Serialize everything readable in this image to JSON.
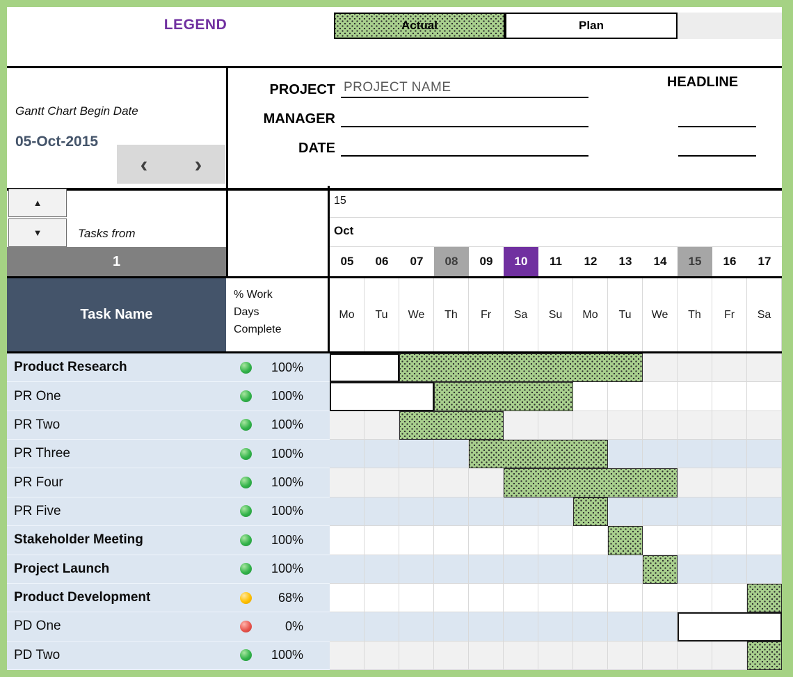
{
  "legend": {
    "title": "LEGEND",
    "actual_label": "Actual",
    "plan_label": "Plan"
  },
  "colors": {
    "page_border_green": "#a5d284",
    "legend_title_purple": "#7030a0",
    "actual_bar_green": "#a9d08e",
    "header_dark_slate": "#44546a",
    "task_column_blue": "#dce6f1",
    "today_purple": "#7030a0",
    "day_highlight_gray": "#a6a6a6",
    "row_start_bar_gray": "#808080",
    "status_green": "#33b34a",
    "status_yellow": "#ffc000",
    "status_red": "#e8564e"
  },
  "header": {
    "begin_date_label": "Gantt Chart Begin Date",
    "begin_date_value": "05-Oct-2015",
    "nav_prev": "‹",
    "nav_next": "›",
    "project_label": "PROJECT",
    "project_value": "PROJECT NAME",
    "manager_label": "MANAGER",
    "manager_value": "",
    "date_label": "DATE",
    "date_value": "",
    "headline_label": "HEADLINE"
  },
  "scroll": {
    "up_icon": "▲",
    "down_icon": "▼",
    "tasks_from_label": "Tasks from",
    "tasks_from_value": "1"
  },
  "columns": {
    "task_name_header": "Task Name",
    "pct_header_lines": [
      "% Work",
      "Days",
      "Complete"
    ]
  },
  "timeline": {
    "year_label": "15",
    "month_label": "Oct",
    "days": [
      {
        "num": "05",
        "dow": "Mo",
        "highlight": "none"
      },
      {
        "num": "06",
        "dow": "Tu",
        "highlight": "none"
      },
      {
        "num": "07",
        "dow": "We",
        "highlight": "none"
      },
      {
        "num": "08",
        "dow": "Th",
        "highlight": "gray"
      },
      {
        "num": "09",
        "dow": "Fr",
        "highlight": "none"
      },
      {
        "num": "10",
        "dow": "Sa",
        "highlight": "purple"
      },
      {
        "num": "11",
        "dow": "Su",
        "highlight": "none"
      },
      {
        "num": "12",
        "dow": "Mo",
        "highlight": "none"
      },
      {
        "num": "13",
        "dow": "Tu",
        "highlight": "none"
      },
      {
        "num": "14",
        "dow": "We",
        "highlight": "none"
      },
      {
        "num": "15",
        "dow": "Th",
        "highlight": "gray"
      },
      {
        "num": "16",
        "dow": "Fr",
        "highlight": "none"
      },
      {
        "num": "17",
        "dow": "Sa",
        "highlight": "none"
      }
    ]
  },
  "tasks": [
    {
      "name": "Product Research",
      "bold": true,
      "status": "green",
      "pct": "100%",
      "shade": "gray",
      "bars": [
        {
          "kind": "plan",
          "start": 5,
          "end": 6
        },
        {
          "kind": "actual",
          "start": 7,
          "end": 13
        }
      ]
    },
    {
      "name": "PR One",
      "bold": false,
      "status": "green",
      "pct": "100%",
      "shade": "white",
      "bars": [
        {
          "kind": "plan",
          "start": 5,
          "end": 7
        },
        {
          "kind": "actual",
          "start": 8,
          "end": 11
        }
      ]
    },
    {
      "name": "PR Two",
      "bold": false,
      "status": "green",
      "pct": "100%",
      "shade": "gray",
      "bars": [
        {
          "kind": "actual",
          "start": 7,
          "end": 9
        }
      ]
    },
    {
      "name": "PR Three",
      "bold": false,
      "status": "green",
      "pct": "100%",
      "shade": "blue",
      "bars": [
        {
          "kind": "actual",
          "start": 9,
          "end": 12
        }
      ]
    },
    {
      "name": "PR Four",
      "bold": false,
      "status": "green",
      "pct": "100%",
      "shade": "gray",
      "bars": [
        {
          "kind": "actual",
          "start": 10,
          "end": 14
        }
      ]
    },
    {
      "name": "PR Five",
      "bold": false,
      "status": "green",
      "pct": "100%",
      "shade": "blue",
      "bars": [
        {
          "kind": "actual",
          "start": 12,
          "end": 12
        }
      ]
    },
    {
      "name": "Stakeholder Meeting",
      "bold": true,
      "status": "green",
      "pct": "100%",
      "shade": "white",
      "bars": [
        {
          "kind": "actual",
          "start": 13,
          "end": 13
        }
      ]
    },
    {
      "name": "Project Launch",
      "bold": true,
      "status": "green",
      "pct": "100%",
      "shade": "blue",
      "bars": [
        {
          "kind": "actual",
          "start": 14,
          "end": 14
        }
      ]
    },
    {
      "name": "Product Development",
      "bold": true,
      "status": "yellow",
      "pct": "68%",
      "shade": "white",
      "bars": [
        {
          "kind": "actual",
          "start": 17,
          "end": 17
        }
      ]
    },
    {
      "name": "PD One",
      "bold": false,
      "status": "red",
      "pct": "0%",
      "shade": "blue",
      "bars": [
        {
          "kind": "plan",
          "start": 15,
          "end": 17
        }
      ]
    },
    {
      "name": "PD Two",
      "bold": false,
      "status": "green",
      "pct": "100%",
      "shade": "gray",
      "bars": [
        {
          "kind": "actual",
          "start": 17,
          "end": 17
        }
      ]
    }
  ],
  "chart_data": {
    "type": "gantt",
    "title": "Project Gantt Chart, begin date 05-Oct-2015",
    "legend": [
      "Actual",
      "Plan"
    ],
    "x_axis": {
      "year": "2015",
      "month": "Oct",
      "days": [
        "05",
        "06",
        "07",
        "08",
        "09",
        "10",
        "11",
        "12",
        "13",
        "14",
        "15",
        "16",
        "17"
      ],
      "weekdays": [
        "Mo",
        "Tu",
        "We",
        "Th",
        "Fr",
        "Sa",
        "Su",
        "Mo",
        "Tu",
        "We",
        "Th",
        "Fr",
        "Sa"
      ],
      "highlighted_days": {
        "gray": [
          "08",
          "15"
        ],
        "purple": [
          "10"
        ]
      }
    },
    "tasks": [
      {
        "name": "Product Research",
        "percent_complete": 100,
        "plan_start": "05-Oct",
        "plan_end": "06-Oct",
        "actual_start": "07-Oct",
        "actual_end": "13-Oct"
      },
      {
        "name": "PR One",
        "percent_complete": 100,
        "plan_start": "05-Oct",
        "plan_end": "07-Oct",
        "actual_start": "08-Oct",
        "actual_end": "11-Oct"
      },
      {
        "name": "PR Two",
        "percent_complete": 100,
        "actual_start": "07-Oct",
        "actual_end": "09-Oct"
      },
      {
        "name": "PR Three",
        "percent_complete": 100,
        "actual_start": "09-Oct",
        "actual_end": "12-Oct"
      },
      {
        "name": "PR Four",
        "percent_complete": 100,
        "actual_start": "10-Oct",
        "actual_end": "14-Oct"
      },
      {
        "name": "PR Five",
        "percent_complete": 100,
        "actual_start": "12-Oct",
        "actual_end": "12-Oct"
      },
      {
        "name": "Stakeholder Meeting",
        "percent_complete": 100,
        "actual_start": "13-Oct",
        "actual_end": "13-Oct"
      },
      {
        "name": "Project Launch",
        "percent_complete": 100,
        "actual_start": "14-Oct",
        "actual_end": "14-Oct"
      },
      {
        "name": "Product Development",
        "percent_complete": 68,
        "actual_start": "17-Oct",
        "actual_end": "17-Oct"
      },
      {
        "name": "PD One",
        "percent_complete": 0,
        "plan_start": "15-Oct",
        "plan_end": "17-Oct"
      },
      {
        "name": "PD Two",
        "percent_complete": 100,
        "actual_start": "17-Oct",
        "actual_end": "17-Oct"
      }
    ]
  }
}
